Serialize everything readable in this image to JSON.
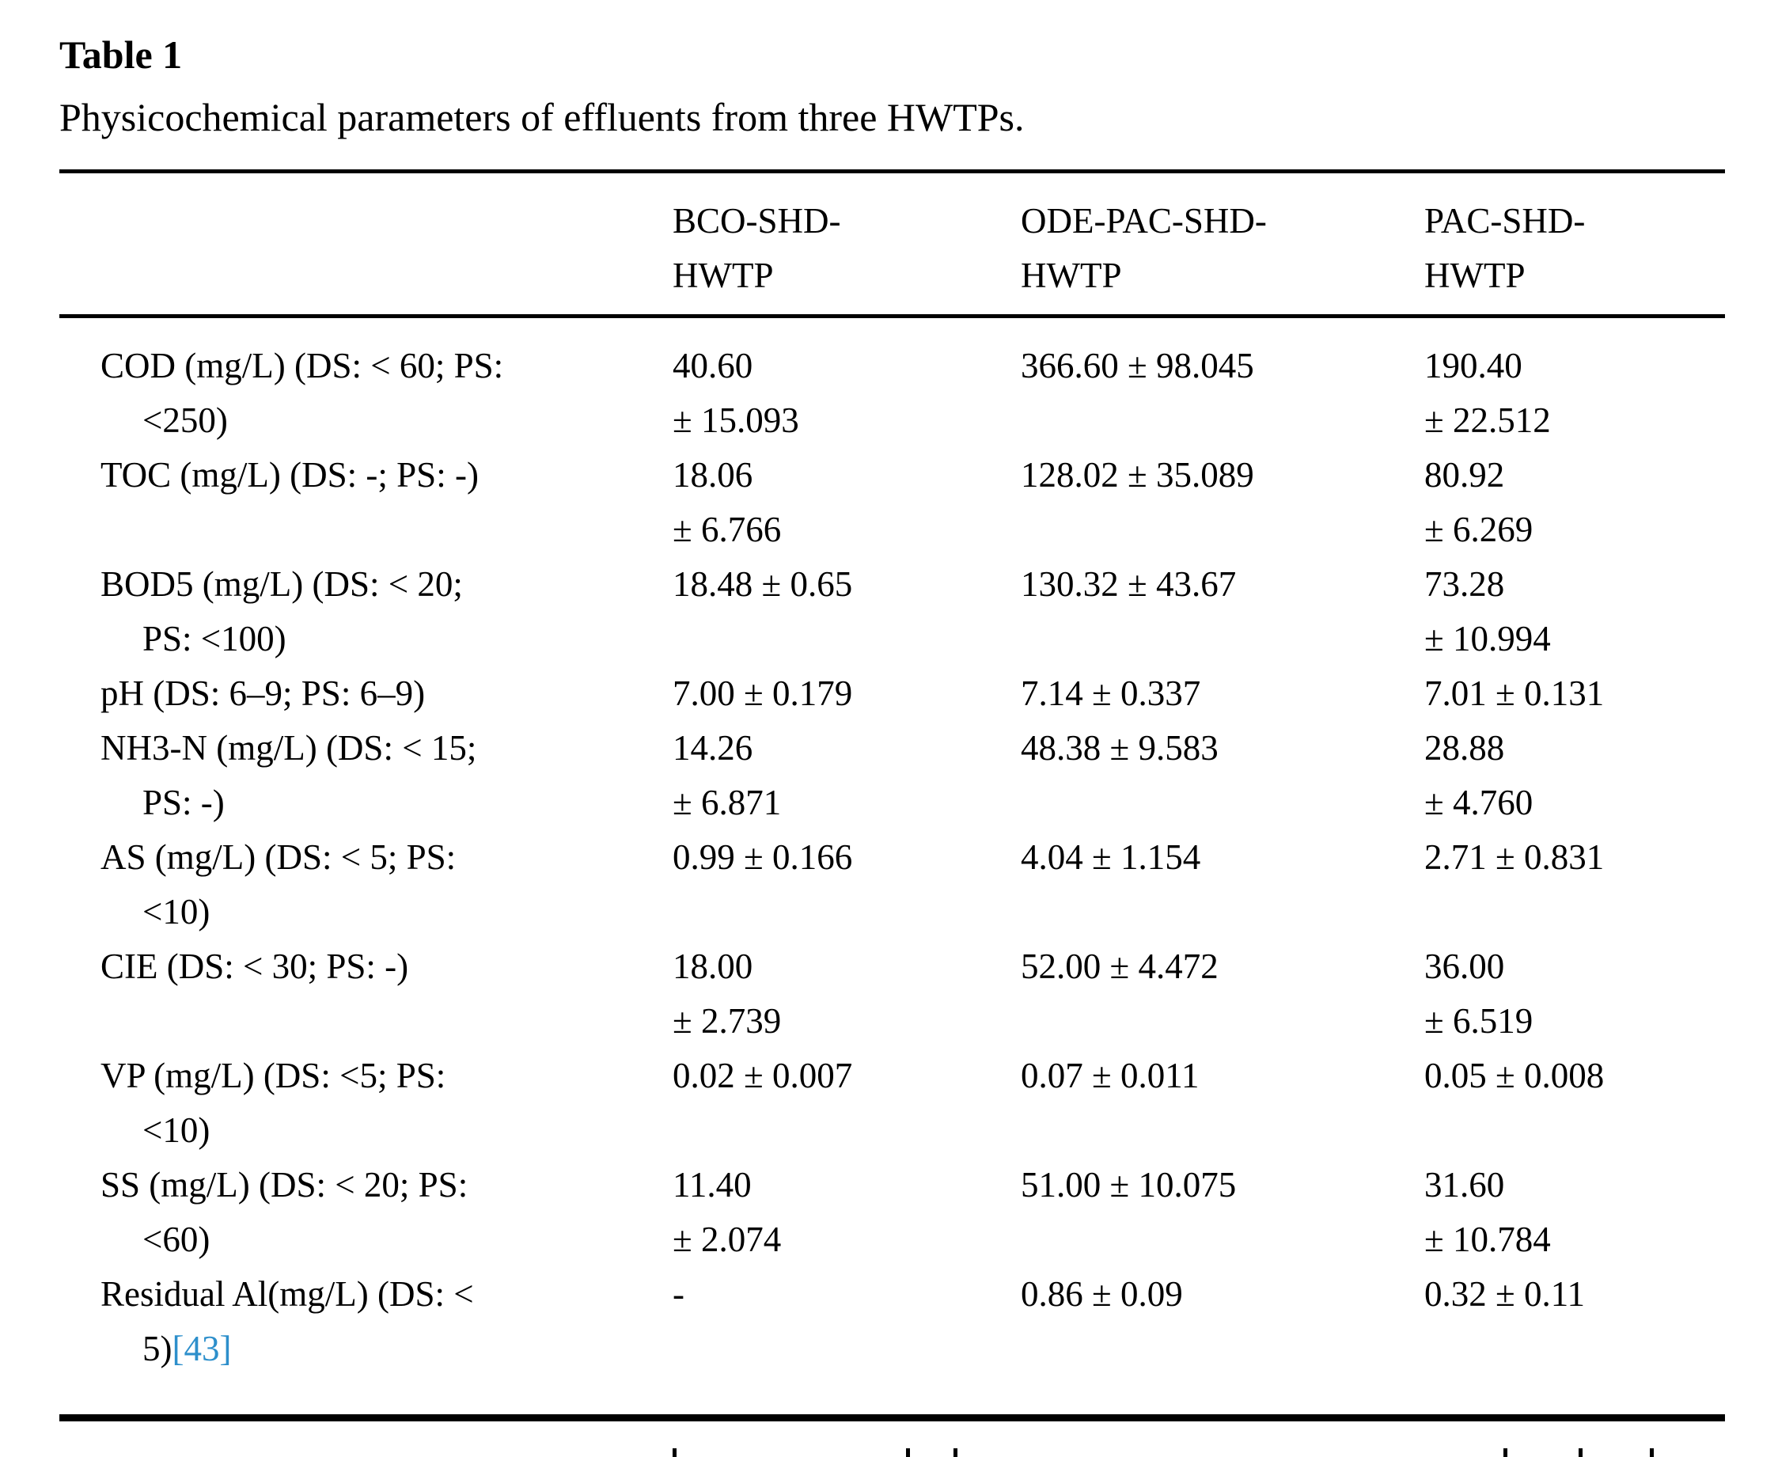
{
  "page": {
    "title": "Table 1",
    "caption": "Physicochemical parameters of effluents from three HWTPs."
  },
  "colors": {
    "text": "#000000",
    "citation_link": "#2d8fcb",
    "rule": "#000000"
  },
  "table": {
    "columns": [
      {
        "id": "bco-shd-hwtp",
        "lines": [
          "BCO-SHD-",
          "HWTP"
        ]
      },
      {
        "id": "ode-pac-shd-hwtp",
        "lines": [
          "ODE-PAC-SHD-",
          "HWTP"
        ]
      },
      {
        "id": "pac-shd-hwtp",
        "lines": [
          "PAC-SHD-",
          "HWTP"
        ]
      }
    ],
    "rows": [
      {
        "parameter": "COD (mg/L) (DS: < 60; PS: <250)",
        "label_lines": [
          "COD (mg/L) (DS: < 60; PS:",
          "<250)"
        ],
        "values": [
          [
            "40.60",
            "± 15.093"
          ],
          [
            "366.60 ± 98.045"
          ],
          [
            "190.40",
            "± 22.512"
          ]
        ]
      },
      {
        "parameter": "TOC (mg/L) (DS: -; PS: -)",
        "label_lines": [
          "TOC (mg/L) (DS: -; PS: -)"
        ],
        "values": [
          [
            "18.06",
            "± 6.766"
          ],
          [
            "128.02 ± 35.089"
          ],
          [
            "80.92",
            "± 6.269"
          ]
        ]
      },
      {
        "parameter": "BOD5 (mg/L) (DS: < 20; PS: <100)",
        "label_lines": [
          "BOD5 (mg/L) (DS: < 20;",
          "PS: <100)"
        ],
        "values": [
          [
            "18.48 ± 0.65"
          ],
          [
            "130.32 ± 43.67"
          ],
          [
            "73.28",
            "± 10.994"
          ]
        ]
      },
      {
        "parameter": "pH (DS: 6–9; PS: 6–9)",
        "label_lines": [
          "pH (DS: 6–9; PS: 6–9)"
        ],
        "values": [
          [
            "7.00 ± 0.179"
          ],
          [
            "7.14 ± 0.337"
          ],
          [
            "7.01 ± 0.131"
          ]
        ]
      },
      {
        "parameter": "NH3-N (mg/L) (DS: < 15; PS: -)",
        "label_lines": [
          "NH3-N (mg/L) (DS: < 15;",
          "PS: -)"
        ],
        "values": [
          [
            "14.26",
            "± 6.871"
          ],
          [
            "48.38 ± 9.583"
          ],
          [
            "28.88",
            "± 4.760"
          ]
        ]
      },
      {
        "parameter": "AS (mg/L) (DS: < 5; PS: <10)",
        "label_lines": [
          "AS (mg/L) (DS: < 5; PS:",
          "<10)"
        ],
        "values": [
          [
            "0.99 ± 0.166"
          ],
          [
            "4.04 ± 1.154"
          ],
          [
            "2.71 ± 0.831"
          ]
        ]
      },
      {
        "parameter": "CIE (DS: < 30; PS: -)",
        "label_lines": [
          "CIE (DS: < 30; PS: -)"
        ],
        "values": [
          [
            "18.00",
            "± 2.739"
          ],
          [
            "52.00 ± 4.472"
          ],
          [
            "36.00",
            "± 6.519"
          ]
        ]
      },
      {
        "parameter": "VP (mg/L) (DS: <5; PS: <10)",
        "label_lines": [
          "VP (mg/L) (DS: <5; PS:",
          "<10)"
        ],
        "values": [
          [
            "0.02 ± 0.007"
          ],
          [
            "0.07 ± 0.011"
          ],
          [
            "0.05 ± 0.008"
          ]
        ]
      },
      {
        "parameter": "SS (mg/L) (DS: < 20; PS: <60)",
        "label_lines": [
          "SS (mg/L) (DS: < 20; PS:",
          "<60)"
        ],
        "values": [
          [
            "11.40",
            "± 2.074"
          ],
          [
            "51.00 ± 10.075"
          ],
          [
            "31.60",
            "± 10.784"
          ]
        ]
      },
      {
        "parameter": "Residual Al(mg/L) (DS: < 5)",
        "label_lines": [
          "Residual Al(mg/L) (DS: <",
          "5)"
        ],
        "citation": "[43]",
        "values": [
          [
            "-"
          ],
          [
            "0.86 ± 0.09"
          ],
          [
            "0.32 ± 0.11"
          ]
        ]
      }
    ]
  }
}
